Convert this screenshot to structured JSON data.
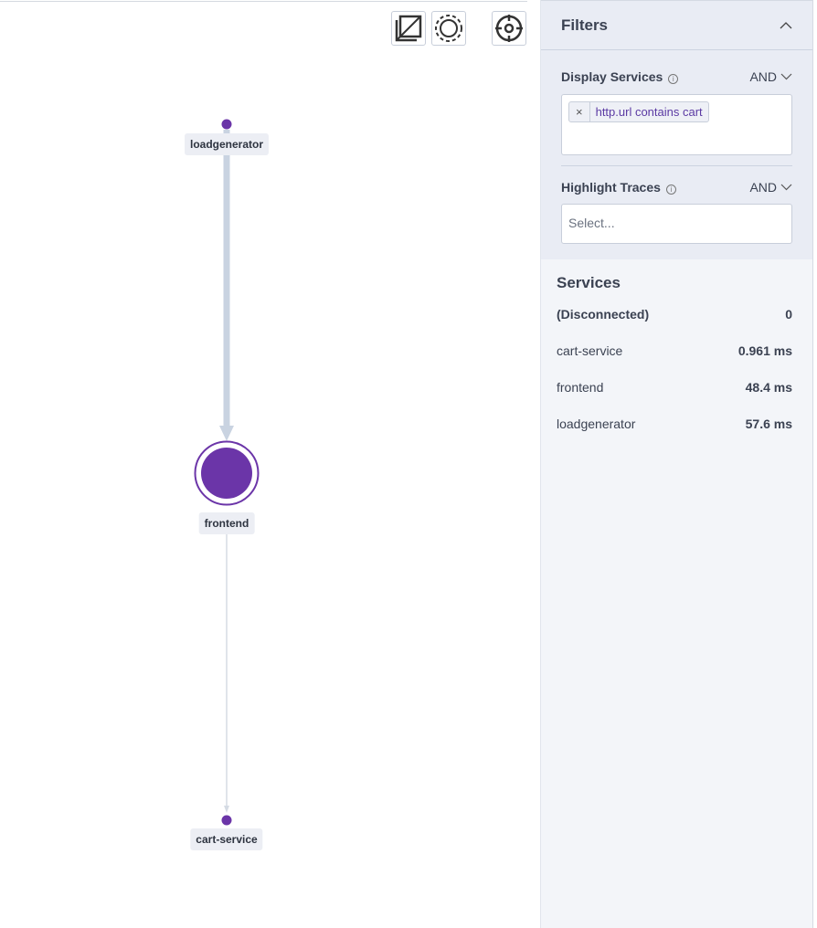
{
  "toolbar": {
    "buttons": [
      {
        "icon": "fit-to-screen-icon"
      },
      {
        "icon": "layout-circle-icon"
      },
      {
        "icon": "center-target-icon"
      }
    ]
  },
  "graph": {
    "node_color": "#6b35a8",
    "edge_color": "#c9d3e1",
    "nodes": [
      {
        "label": "loadgenerator"
      },
      {
        "label": "frontend"
      },
      {
        "label": "cart-service"
      }
    ],
    "edges": [
      {
        "from": "loadgenerator",
        "to": "frontend"
      },
      {
        "from": "frontend",
        "to": "cart-service"
      }
    ]
  },
  "filters": {
    "title": "Filters",
    "display_services": {
      "label": "Display Services",
      "operator": "AND",
      "chips": [
        {
          "label": "http.url contains cart"
        }
      ]
    },
    "highlight_traces": {
      "label": "Highlight Traces",
      "operator": "AND",
      "placeholder": "Select..."
    }
  },
  "services": {
    "title": "Services",
    "items": [
      {
        "name": "(Disconnected)",
        "value": "0",
        "bold_name": true
      },
      {
        "name": "cart-service",
        "value": "0.961 ms"
      },
      {
        "name": "frontend",
        "value": "48.4 ms"
      },
      {
        "name": "loadgenerator",
        "value": "57.6 ms"
      }
    ]
  }
}
